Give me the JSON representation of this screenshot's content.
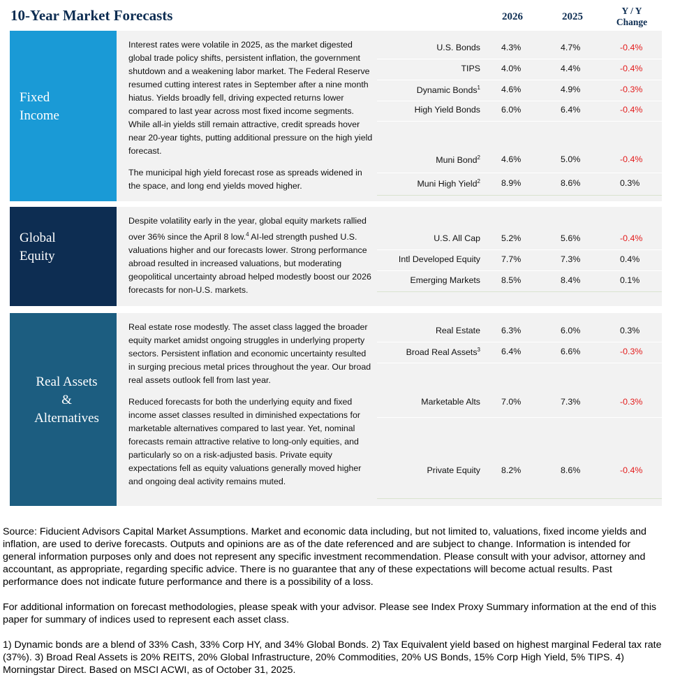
{
  "title": "10-Year Market Forecasts",
  "columns": [
    "2026",
    "2025",
    "Y / Y Change"
  ],
  "sections": [
    {
      "label": [
        "Fixed",
        "Income"
      ],
      "paragraphs": [
        {
          "text": "Interest rates were volatile in 2025, as the market digested global trade policy shifts, persistent inflation, the government shutdown and a weakening labor market. The Federal Reserve resumed cutting interest rates in September after a nine month hiatus. Yields broadly fell, driving expected returns lower compared to last year across most fixed income segments. While all-in yields still remain attractive, credit spreads hover near 20-year tights, putting additional pressure on the high yield forecast."
        },
        {
          "text": "The municipal high yield forecast rose as spreads widened in the space, and long end yields moved higher."
        }
      ],
      "rows": [
        {
          "name": "U.S. Bonds",
          "values": [
            "4.3%",
            "4.7%",
            "-0.4%"
          ]
        },
        {
          "name": "TIPS",
          "values": [
            "4.0%",
            "4.4%",
            "-0.4%"
          ]
        },
        {
          "name": "Dynamic Bonds",
          "note": "1",
          "values": [
            "4.6%",
            "4.9%",
            "-0.3%"
          ]
        },
        {
          "name": "High Yield Bonds",
          "values": [
            "6.0%",
            "6.4%",
            "-0.4%"
          ]
        },
        {
          "name": "Muni Bond",
          "note": "2",
          "values": [
            "4.6%",
            "5.0%",
            "-0.4%"
          ]
        },
        {
          "name": "Muni High Yield",
          "note": "2",
          "values": [
            "8.9%",
            "8.6%",
            "0.3%"
          ]
        }
      ]
    },
    {
      "label": [
        "Global",
        "Equity"
      ],
      "paragraphs": [
        {
          "text": "Despite volatility early in the year, global equity markets rallied over 36% since the April 8 low.",
          "note": "4",
          "rest": " AI-led strength pushed U.S. valuations higher and our forecasts lower. Strong performance abroad resulted in increased valuations, but moderating geopolitical uncertainty abroad helped modestly boost our 2026 forecasts for non-U.S. markets."
        }
      ],
      "rows": [
        {
          "name": "U.S. All Cap",
          "values": [
            "5.2%",
            "5.6%",
            "-0.4%"
          ]
        },
        {
          "name": "Intl Developed Equity",
          "values": [
            "7.7%",
            "7.3%",
            "0.4%"
          ]
        },
        {
          "name": "Emerging Markets",
          "values": [
            "8.5%",
            "8.4%",
            "0.1%"
          ]
        }
      ]
    },
    {
      "label": [
        "Real Assets",
        "&",
        "Alternatives"
      ],
      "paragraphs": [
        {
          "text": "Real estate rose modestly. The asset class lagged the broader equity market amidst ongoing struggles in underlying property sectors. Persistent inflation and economic uncertainty resulted in surging precious metal prices throughout the year. Our broad real assets outlook fell from last year."
        },
        {
          "text": "Reduced forecasts for both the underlying equity and fixed income asset classes resulted in diminished expectations for marketable alternatives compared to last year. Yet, nominal forecasts remain attractive relative to long-only equities, and particularly so on a risk-adjusted basis. Private equity expectations fell as equity valuations generally moved higher and ongoing deal activity remains muted."
        }
      ],
      "rows": [
        {
          "name": "Real Estate",
          "values": [
            "6.3%",
            "6.0%",
            "0.3%"
          ]
        },
        {
          "name": "Broad Real Assets",
          "note": "3",
          "values": [
            "6.4%",
            "6.6%",
            "-0.3%"
          ]
        },
        {
          "name": "Marketable Alts",
          "values": [
            "7.0%",
            "7.3%",
            "-0.3%"
          ]
        },
        {
          "name": "Private Equity",
          "values": [
            "8.2%",
            "8.6%",
            "-0.4%"
          ]
        }
      ]
    }
  ],
  "footer": [
    "Source: Fiducient Advisors Capital Market Assumptions. Market and economic data including, but not limited to, valuations, fixed income yields and inflation, are used to derive forecasts. Outputs and opinions are as of the date referenced and are subject to change. Information is intended for general information purposes only and does not represent any specific investment recommendation. Please consult with your advisor, attorney and accountant, as appropriate, regarding specific advice. There is no guarantee that any of these expectations will become actual results. Past performance does not indicate future performance and there is a possibility of a loss.",
    "For additional information on forecast methodologies, please speak with your advisor. Please see Index Proxy Summary information at the end of this paper for summary of indices used to represent each asset class.",
    "1) Dynamic bonds are a blend of 33% Cash, 33% Corp HY, and 34% Global Bonds. 2) Tax Equivalent yield based on highest marginal Federal tax rate (37%). 3) Broad Real Assets is 20% REITS, 20% Global Infrastructure, 20% Commodities, 20% US Bonds, 15% Corp High Yield, 5% TIPS. 4) Morningstar Direct. Based on MSCI ACWI, as of October 31, 2025."
  ]
}
